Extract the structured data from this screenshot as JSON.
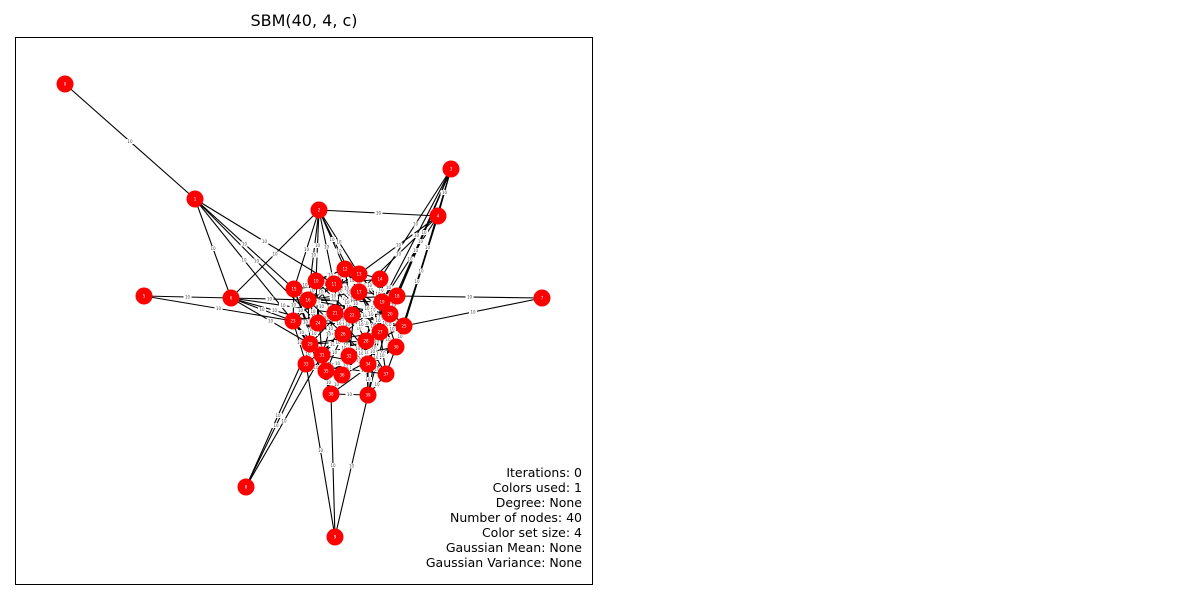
{
  "title": "SBM(40, 4, c)",
  "colors": {
    "node": "#ff0000",
    "edge": "#000000",
    "node_label": "#ffffff",
    "edge_label": "#444444"
  },
  "edge_weight": "10",
  "info": [
    {
      "label": "Iterations",
      "value": "0"
    },
    {
      "label": "Colors used",
      "value": "1"
    },
    {
      "label": "Degree",
      "value": "None"
    },
    {
      "label": "Number of nodes",
      "value": "40"
    },
    {
      "label": "Color set size",
      "value": "4"
    },
    {
      "label": "Gaussian Mean",
      "value": "None"
    },
    {
      "label": "Gaussian Variance",
      "value": "None"
    }
  ],
  "info_text": {
    "line0": "Iterations: 0",
    "line1": "Colors used: 1",
    "line2": "Degree: None",
    "line3": "Number of nodes: 40",
    "line4": "Color set size: 4",
    "line5": "Gaussian Mean: None",
    "line6": "Gaussian Variance: None"
  }
}
